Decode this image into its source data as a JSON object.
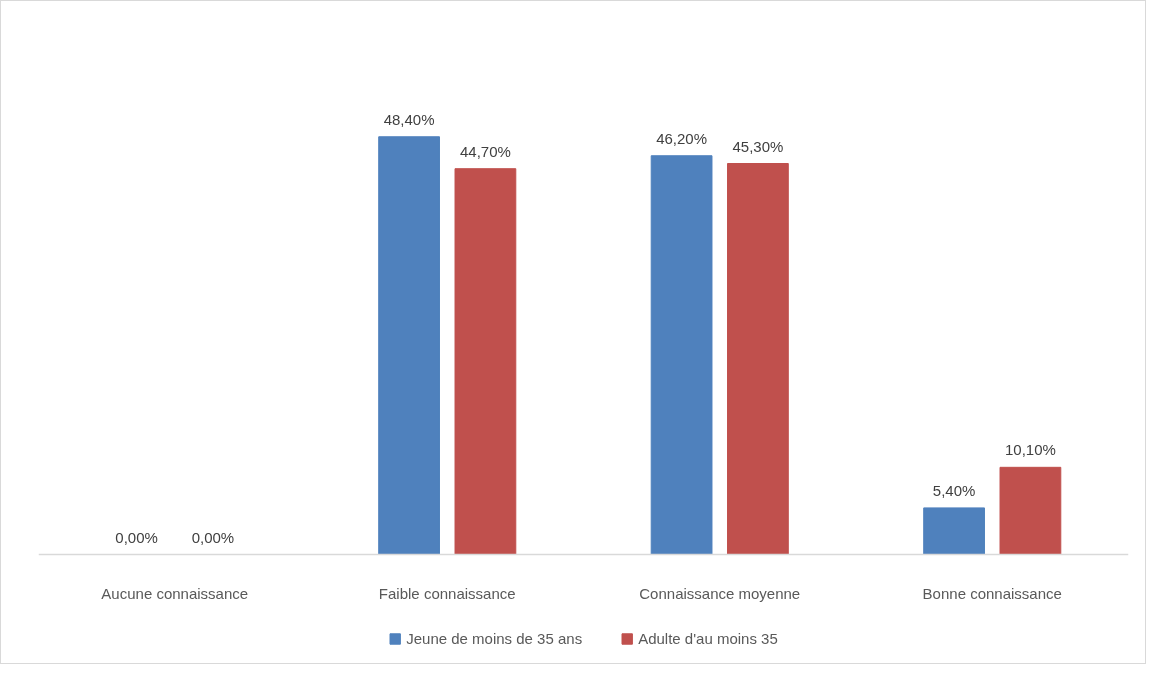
{
  "chart_data": {
    "type": "bar",
    "categories": [
      "Aucune connaissance",
      "Faible connaissance",
      "Connaissance moyenne",
      "Bonne connaissance"
    ],
    "series": [
      {
        "name": "Jeune de moins de 35 ans",
        "color": "#4f81bd",
        "values": [
          0,
          48.4,
          46.2,
          5.4
        ],
        "value_labels": [
          "0,00%",
          "48,40%",
          "46,20%",
          "5,40%"
        ]
      },
      {
        "name": "Adulte d'au moins 35",
        "color": "#c0504d",
        "values": [
          0,
          44.7,
          45.3,
          10.1
        ],
        "value_labels": [
          "0,00%",
          "44,70%",
          "45,30%",
          "10,10%"
        ]
      }
    ],
    "tick_labels": "x",
    "grid": false,
    "legend": "bottom"
  }
}
